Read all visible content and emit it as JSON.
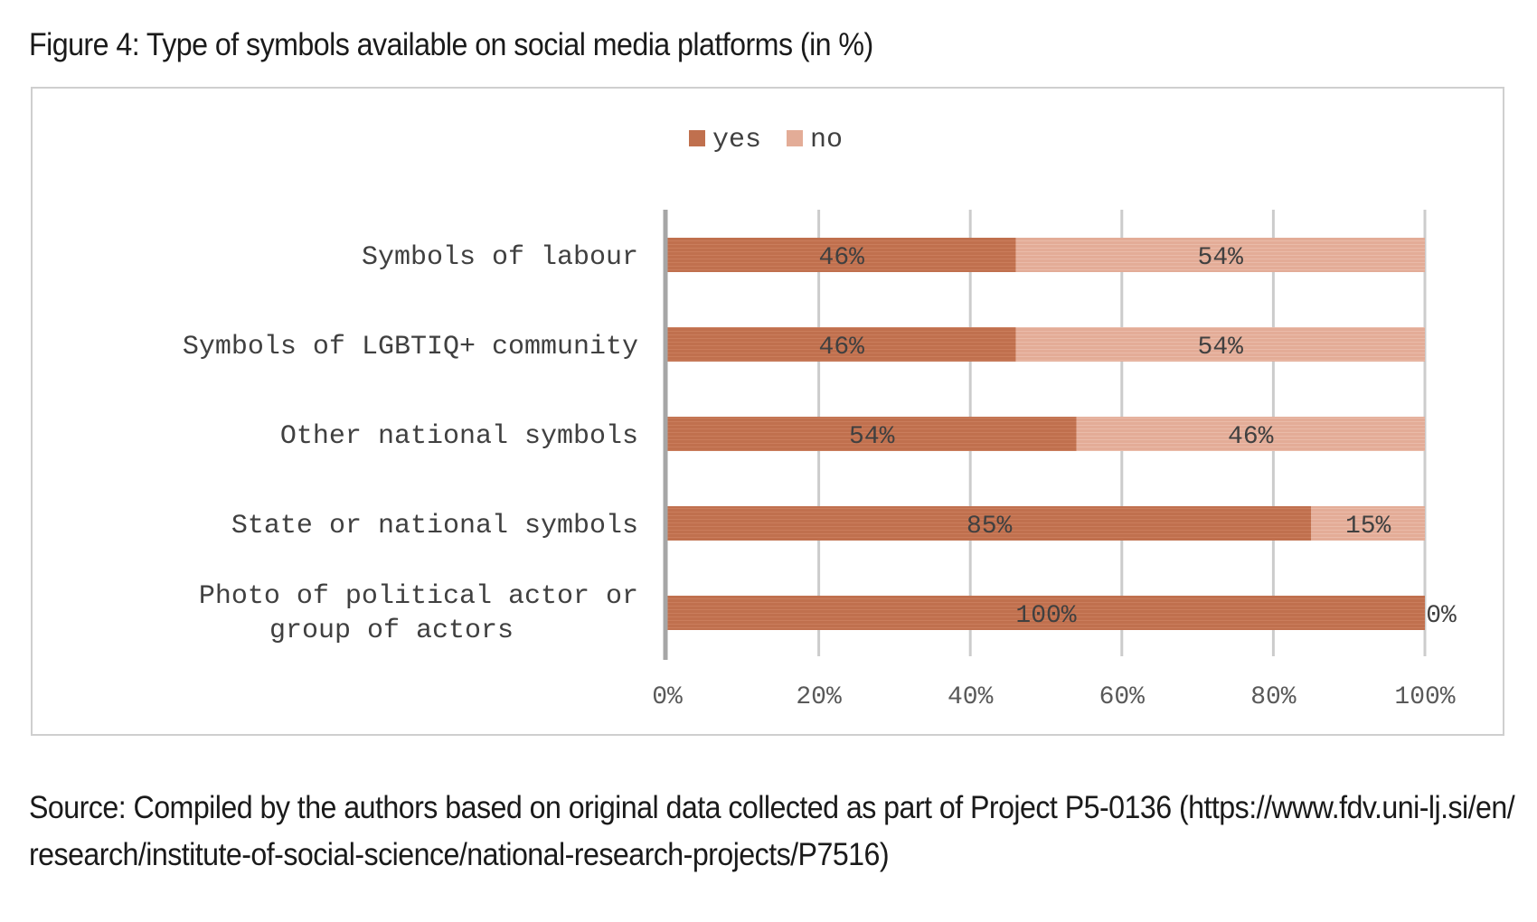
{
  "figure": {
    "title": "Figure 4: Type of symbols available on social media platforms (in %)",
    "source_lines": [
      "Source: Compiled by the authors based on original data collected as part of Project P5-0136 (https://www.fdv.uni-lj.si/en/",
      "research/institute-of-social-science/national-research-projects/P7516)"
    ]
  },
  "chart_data": {
    "type": "bar",
    "orientation": "horizontal",
    "stacked": true,
    "categories": [
      [
        "Symbols of labour"
      ],
      [
        "Symbols of LGBTIQ+ community"
      ],
      [
        "Other national symbols"
      ],
      [
        "State or national symbols"
      ],
      [
        "Photo of political actor or",
        "group of actors"
      ]
    ],
    "series": [
      {
        "name": "yes",
        "color": "#c0704e",
        "values": [
          46,
          46,
          54,
          85,
          100
        ],
        "labels": [
          "46%",
          "46%",
          "54%",
          "85%",
          "100%"
        ]
      },
      {
        "name": "no",
        "color": "#e3ac97",
        "values": [
          54,
          54,
          46,
          15,
          0
        ],
        "labels": [
          "54%",
          "54%",
          "46%",
          "15%",
          "0%"
        ]
      }
    ],
    "xlim": [
      0,
      100
    ],
    "xticks": [
      0,
      20,
      40,
      60,
      80,
      100
    ],
    "xtick_labels": [
      "0%",
      "20%",
      "40%",
      "60%",
      "80%",
      "100%"
    ],
    "grid": true,
    "legend": "top-center"
  }
}
